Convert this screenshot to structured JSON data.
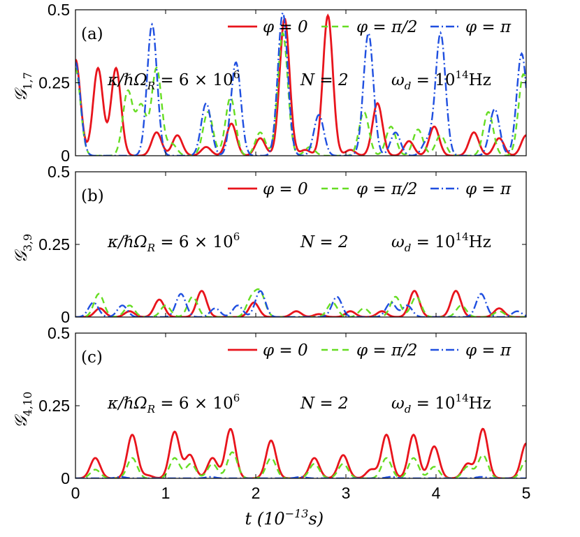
{
  "chart_data": [
    {
      "type": "line",
      "panel_label": "(a)",
      "ylabel": "𝒢",
      "ylabel_sub": "1,7",
      "ylim": [
        0,
        0.5
      ],
      "yticks": [
        "0",
        "0.25",
        "0.5"
      ],
      "show_xticklabels": false,
      "annotation": {
        "kappa": "κ/ℏΩ",
        "kappa_sub": "R",
        "kappa_eq": " = 6 × 10",
        "kappa_exp": "6",
        "N": "N = 2",
        "omega": "ω",
        "omega_sub": "d",
        "omega_eq": " = 10",
        "omega_exp": "14",
        "omega_unit": "Hz"
      },
      "series": [
        {
          "name": "φ = 0",
          "color": "#e8141c",
          "dash": "",
          "peaks": [
            [
              0.0,
              0.33
            ],
            [
              0.25,
              0.3
            ],
            [
              0.45,
              0.3
            ],
            [
              0.9,
              0.08
            ],
            [
              1.13,
              0.07
            ],
            [
              1.45,
              0.03
            ],
            [
              1.73,
              0.11
            ],
            [
              2.05,
              0.06
            ],
            [
              2.32,
              0.47
            ],
            [
              2.55,
              0.02
            ],
            [
              2.8,
              0.48
            ],
            [
              3.05,
              0.02
            ],
            [
              3.35,
              0.18
            ],
            [
              3.7,
              0.05
            ],
            [
              3.98,
              0.1
            ],
            [
              4.42,
              0.08
            ],
            [
              4.7,
              0.06
            ],
            [
              5.0,
              0.07
            ]
          ]
        },
        {
          "name": "φ = π/2",
          "color": "#66dd22",
          "dash": "9,6",
          "peaks": [
            [
              0.0,
              0.3
            ],
            [
              0.58,
              0.22
            ],
            [
              0.73,
              0.17
            ],
            [
              0.9,
              0.3
            ],
            [
              1.07,
              0.04
            ],
            [
              1.47,
              0.15
            ],
            [
              1.72,
              0.2
            ],
            [
              2.05,
              0.08
            ],
            [
              2.3,
              0.42
            ],
            [
              2.6,
              0.03
            ],
            [
              3.2,
              0.15
            ],
            [
              3.5,
              0.1
            ],
            [
              3.8,
              0.09
            ],
            [
              4.05,
              0.07
            ],
            [
              4.58,
              0.15
            ],
            [
              4.97,
              0.28
            ]
          ]
        },
        {
          "name": "φ = π",
          "color": "#1f4fe0",
          "dash": "12,4,2,4",
          "peaks": [
            [
              0.0,
              0.32
            ],
            [
              0.85,
              0.45
            ],
            [
              1.45,
              0.18
            ],
            [
              1.78,
              0.32
            ],
            [
              2.3,
              0.49
            ],
            [
              2.7,
              0.14
            ],
            [
              3.25,
              0.42
            ],
            [
              3.55,
              0.08
            ],
            [
              3.9,
              0.05
            ],
            [
              4.05,
              0.42
            ],
            [
              4.65,
              0.16
            ],
            [
              4.95,
              0.35
            ]
          ]
        }
      ]
    },
    {
      "type": "line",
      "panel_label": "(b)",
      "ylabel": "𝒢",
      "ylabel_sub": "3,9",
      "ylim": [
        0,
        0.5
      ],
      "yticks": [
        "0",
        "0.25",
        "0.5"
      ],
      "show_xticklabels": false,
      "annotation": {
        "kappa": "κ/ℏΩ",
        "kappa_sub": "R",
        "kappa_eq": " = 6 × 10",
        "kappa_exp": "6",
        "N": "N = 2",
        "omega": "ω",
        "omega_sub": "d",
        "omega_eq": " = 10",
        "omega_exp": "14",
        "omega_unit": "Hz"
      },
      "series": [
        {
          "name": "φ = 0",
          "color": "#e8141c",
          "dash": "",
          "peaks": [
            [
              0.27,
              0.03
            ],
            [
              0.6,
              0.02
            ],
            [
              0.93,
              0.06
            ],
            [
              1.4,
              0.09
            ],
            [
              1.98,
              0.05
            ],
            [
              2.45,
              0.02
            ],
            [
              2.7,
              0.01
            ],
            [
              3.05,
              0.02
            ],
            [
              3.4,
              0.02
            ],
            [
              3.76,
              0.09
            ],
            [
              4.22,
              0.09
            ],
            [
              4.7,
              0.03
            ]
          ]
        },
        {
          "name": "φ = π/2",
          "color": "#66dd22",
          "dash": "9,6",
          "peaks": [
            [
              0.26,
              0.08
            ],
            [
              0.6,
              0.04
            ],
            [
              1.0,
              0.04
            ],
            [
              1.3,
              0.07
            ],
            [
              1.95,
              0.06
            ],
            [
              2.05,
              0.08
            ],
            [
              2.85,
              0.05
            ],
            [
              3.2,
              0.03
            ],
            [
              3.55,
              0.07
            ],
            [
              3.78,
              0.07
            ],
            [
              4.28,
              0.04
            ],
            [
              4.7,
              0.02
            ]
          ]
        },
        {
          "name": "φ = π",
          "color": "#1f4fe0",
          "dash": "12,4,2,4",
          "peaks": [
            [
              0.2,
              0.05
            ],
            [
              0.52,
              0.04
            ],
            [
              1.17,
              0.08
            ],
            [
              1.55,
              0.03
            ],
            [
              1.8,
              0.04
            ],
            [
              2.05,
              0.09
            ],
            [
              2.9,
              0.07
            ],
            [
              3.5,
              0.05
            ],
            [
              3.68,
              0.04
            ],
            [
              4.5,
              0.08
            ],
            [
              4.9,
              0.02
            ]
          ]
        }
      ]
    },
    {
      "type": "line",
      "panel_label": "(c)",
      "ylabel": "𝒢",
      "ylabel_sub": "4,10",
      "ylim": [
        0,
        0.5
      ],
      "yticks": [
        "0",
        "0.25",
        "0.5"
      ],
      "show_xticklabels": true,
      "xticks": [
        "0",
        "1",
        "2",
        "3",
        "4",
        "5"
      ],
      "xlim": [
        0,
        5
      ],
      "xlabel": "t (10",
      "xlabel_exp": "−13",
      "xlabel_unit": "s)",
      "annotation": {
        "kappa": "κ/ℏΩ",
        "kappa_sub": "R",
        "kappa_eq": " = 6 × 10",
        "kappa_exp": "6",
        "N": "N = 2",
        "omega": "ω",
        "omega_sub": "d",
        "omega_eq": " = 10",
        "omega_exp": "14",
        "omega_unit": "Hz"
      },
      "series": [
        {
          "name": "φ = 0",
          "color": "#e8141c",
          "dash": "",
          "peaks": [
            [
              0.22,
              0.07
            ],
            [
              0.63,
              0.15
            ],
            [
              0.8,
              0.01
            ],
            [
              1.1,
              0.16
            ],
            [
              1.27,
              0.08
            ],
            [
              1.52,
              0.07
            ],
            [
              1.72,
              0.17
            ],
            [
              2.17,
              0.13
            ],
            [
              2.65,
              0.07
            ],
            [
              2.97,
              0.08
            ],
            [
              3.28,
              0.03
            ],
            [
              3.45,
              0.15
            ],
            [
              3.75,
              0.15
            ],
            [
              3.98,
              0.11
            ],
            [
              4.35,
              0.05
            ],
            [
              4.52,
              0.17
            ],
            [
              5.0,
              0.12
            ]
          ]
        },
        {
          "name": "φ = π/2",
          "color": "#66dd22",
          "dash": "9,6",
          "peaks": [
            [
              0.22,
              0.03
            ],
            [
              0.63,
              0.07
            ],
            [
              1.1,
              0.07
            ],
            [
              1.28,
              0.05
            ],
            [
              1.52,
              0.05
            ],
            [
              1.74,
              0.09
            ],
            [
              2.17,
              0.07
            ],
            [
              2.65,
              0.05
            ],
            [
              2.97,
              0.05
            ],
            [
              3.45,
              0.07
            ],
            [
              3.75,
              0.07
            ],
            [
              3.98,
              0.04
            ],
            [
              4.35,
              0.04
            ],
            [
              4.52,
              0.08
            ],
            [
              5.0,
              0.06
            ]
          ]
        },
        {
          "name": "φ = π",
          "color": "#1f4fe0",
          "dash": "12,4,2,4",
          "peaks": [
            [
              0.5,
              0.005
            ],
            [
              1.5,
              0.005
            ],
            [
              2.5,
              0.005
            ],
            [
              3.5,
              0.005
            ],
            [
              4.5,
              0.005
            ]
          ]
        }
      ]
    }
  ]
}
